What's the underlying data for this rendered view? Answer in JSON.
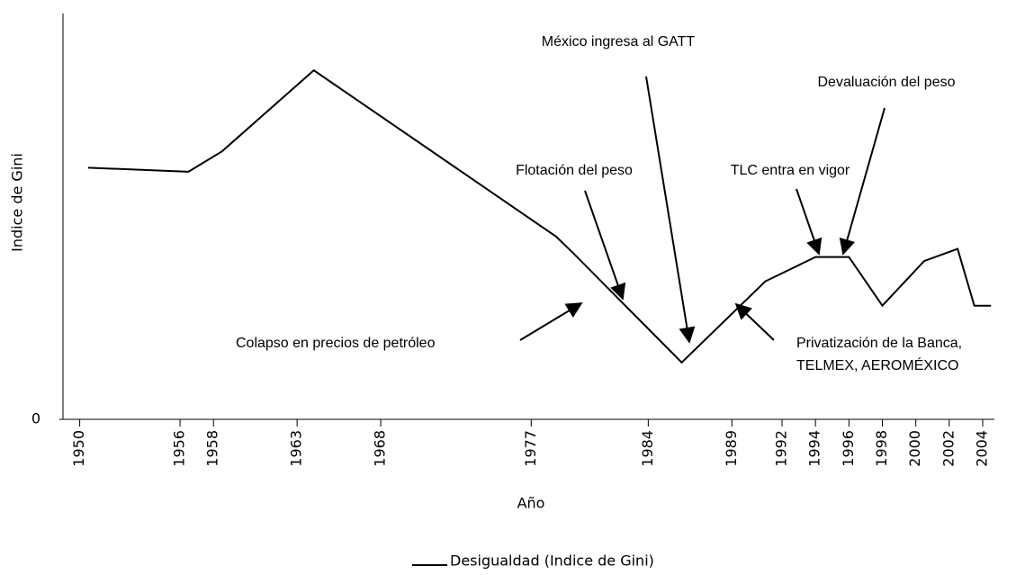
{
  "chart_data": {
    "type": "line",
    "x_label": "Año",
    "y_label": "Indice de Gini",
    "x": [
      1950.5,
      1956.5,
      1958.5,
      1964,
      1978.5,
      1979.5,
      1986,
      1991,
      1994,
      1996,
      1998,
      2000.5,
      2002.5,
      2003.5,
      2004.5
    ],
    "series": [
      {
        "name": "Desigualdad (Indice de Gini)",
        "color": "#000000",
        "values": [
          62,
          61,
          66,
          86,
          45,
          41,
          14,
          34,
          40,
          40,
          28,
          39,
          42,
          28,
          28
        ]
      }
    ],
    "xlim": [
      1949,
      2004.7
    ],
    "xticks": [
      1950,
      1956,
      1958,
      1963,
      1968,
      1977,
      1984,
      1989,
      1992,
      1994,
      1996,
      1998,
      2000,
      2002,
      2004
    ],
    "ylim": [
      0,
      100
    ],
    "yticks": [
      0
    ],
    "annotations": [
      {
        "lines": [
          "México ingresa al GATT"
        ]
      },
      {
        "lines": [
          "Devaluación del peso"
        ]
      },
      {
        "lines": [
          "Flotación del peso"
        ]
      },
      {
        "lines": [
          "TLC entra en vigor"
        ]
      },
      {
        "lines": [
          "Colapso en precios de petróleo"
        ]
      },
      {
        "lines": [
          "Privatización de la Banca,",
          "TELMEX, AEROMÉXICO"
        ]
      }
    ],
    "legend": "bottom"
  }
}
